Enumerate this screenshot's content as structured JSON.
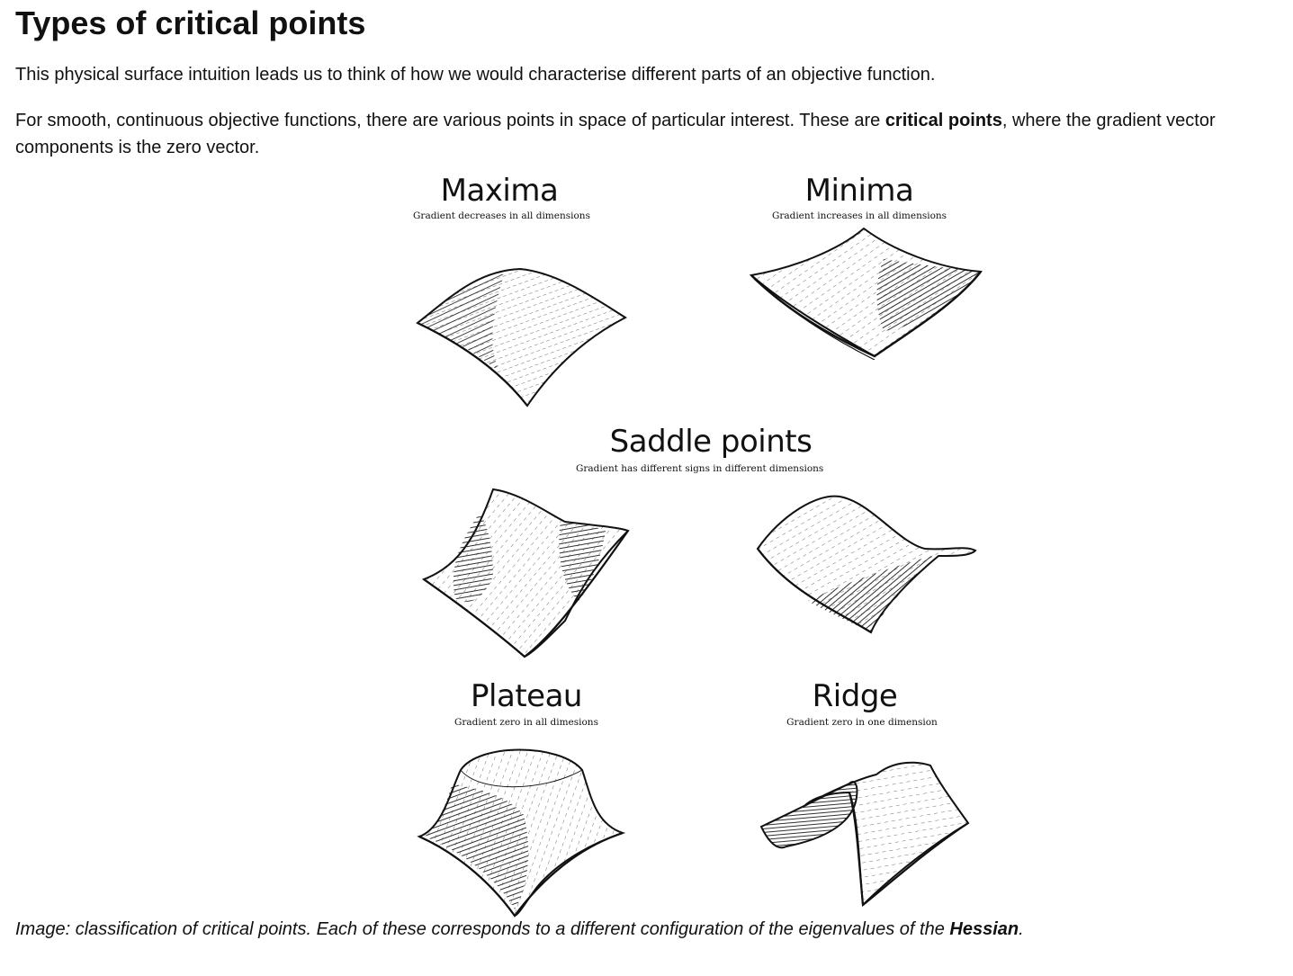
{
  "heading": "Types of critical points",
  "paragraph1": "This physical surface intuition leads us to think of how we would characterise different parts of an objective function.",
  "paragraph2": {
    "before": "For smooth, continuous objective functions, there are various points in space of particular interest. These are ",
    "bold": "critical points",
    "after": ", where the gradient vector components is the zero vector."
  },
  "figure": {
    "maxima": {
      "title": "Maxima",
      "subtitle": "Gradient decreases in all dimensions"
    },
    "minima": {
      "title": "Minima",
      "subtitle": "Gradient increases in all dimensions"
    },
    "saddle": {
      "title": "Saddle points",
      "subtitle": "Gradient has different signs in different dimensions"
    },
    "plateau": {
      "title": "Plateau",
      "subtitle": "Gradient zero in all dimesions"
    },
    "ridge": {
      "title": "Ridge",
      "subtitle": "Gradient zero in one dimension"
    }
  },
  "caption": {
    "before": "Image: classification of critical points. Each of these corresponds to a different configuration of the eigenvalues of the ",
    "bold": "Hessian",
    "after": "."
  },
  "colors": {
    "ink": "#111111",
    "hatch": "#1a1a1a",
    "background": "#ffffff"
  }
}
